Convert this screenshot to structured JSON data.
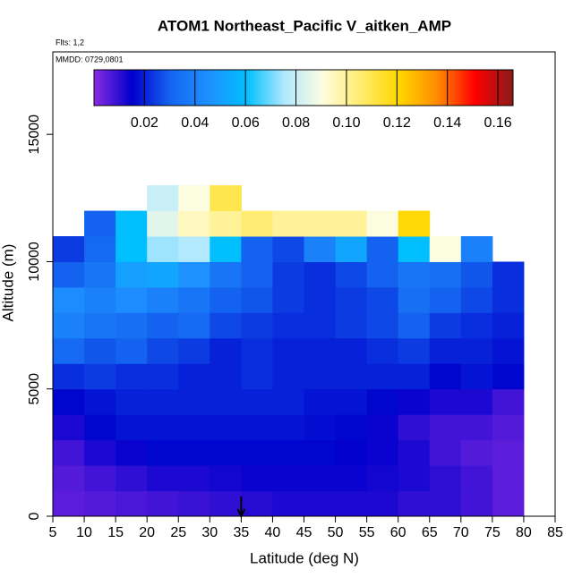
{
  "chart_data": {
    "type": "heatmap",
    "title": "ATOM1 Northeast_Pacific V_aitken_AMP",
    "flights_label": "Flts: 1,2",
    "date_label": "MMDD: 0729,0801",
    "xlabel": "Latitude (deg N)",
    "ylabel": "Altitude (m)",
    "xlim": [
      5,
      85
    ],
    "ylim": [
      0,
      18240
    ],
    "xticks": [
      5,
      10,
      15,
      20,
      25,
      30,
      35,
      40,
      45,
      50,
      55,
      60,
      65,
      70,
      75,
      80,
      85
    ],
    "yticks": [
      0,
      5000,
      10000,
      15000
    ],
    "x": [
      7.5,
      12.5,
      17.5,
      22.5,
      27.5,
      32.5,
      37.5,
      42.5,
      47.5,
      52.5,
      57.5,
      62.5,
      67.5,
      72.5,
      77.5
    ],
    "y": [
      500,
      1500,
      2500,
      3500,
      4500,
      5500,
      6500,
      7500,
      8500,
      9500,
      10500,
      11500,
      12500
    ],
    "z": [
      [
        0.005,
        0.006,
        0.007,
        0.008,
        0.009,
        0.01,
        0.011,
        0.012,
        0.012,
        0.012,
        0.012,
        0.01,
        0.01,
        0.008,
        0.005
      ],
      [
        0.006,
        0.008,
        0.01,
        0.012,
        0.012,
        0.013,
        0.014,
        0.014,
        0.014,
        0.014,
        0.013,
        0.012,
        0.01,
        0.008,
        0.005
      ],
      [
        0.008,
        0.012,
        0.014,
        0.016,
        0.016,
        0.016,
        0.016,
        0.016,
        0.016,
        0.015,
        0.014,
        0.012,
        0.008,
        0.006,
        0.005
      ],
      [
        0.012,
        0.016,
        0.018,
        0.018,
        0.018,
        0.018,
        0.018,
        0.018,
        0.017,
        0.016,
        0.014,
        0.01,
        0.008,
        0.008,
        0.006
      ],
      [
        0.016,
        0.018,
        0.02,
        0.02,
        0.02,
        0.02,
        0.02,
        0.02,
        0.018,
        0.018,
        0.016,
        0.014,
        0.012,
        0.012,
        0.008
      ],
      [
        0.022,
        0.024,
        0.022,
        0.022,
        0.02,
        0.02,
        0.022,
        0.02,
        0.02,
        0.02,
        0.02,
        0.02,
        0.016,
        0.018,
        0.016
      ],
      [
        0.032,
        0.028,
        0.03,
        0.026,
        0.024,
        0.02,
        0.022,
        0.02,
        0.02,
        0.02,
        0.022,
        0.024,
        0.02,
        0.02,
        0.018
      ],
      [
        0.04,
        0.036,
        0.034,
        0.03,
        0.032,
        0.026,
        0.024,
        0.022,
        0.022,
        0.024,
        0.026,
        0.03,
        0.024,
        0.022,
        0.02
      ],
      [
        0.044,
        0.04,
        0.044,
        0.04,
        0.036,
        0.03,
        0.028,
        0.024,
        0.022,
        0.024,
        0.026,
        0.034,
        0.03,
        0.026,
        0.022
      ],
      [
        0.03,
        0.036,
        0.05,
        0.052,
        0.046,
        0.036,
        0.03,
        0.024,
        0.022,
        0.026,
        0.03,
        0.036,
        0.034,
        0.028,
        0.022
      ],
      [
        0.024,
        0.032,
        0.06,
        0.074,
        0.076,
        0.06,
        0.03,
        0.026,
        0.04,
        0.052,
        0.03,
        0.06,
        0.09,
        0.04,
        null
      ],
      [
        null,
        0.03,
        0.06,
        0.085,
        0.095,
        0.1,
        0.105,
        0.1,
        0.1,
        0.1,
        0.09,
        0.12,
        null,
        null,
        null
      ],
      [
        null,
        null,
        null,
        0.08,
        0.09,
        0.11,
        null,
        null,
        null,
        null,
        null,
        null,
        null,
        null,
        null
      ]
    ],
    "clim": [
      0,
      0.166
    ],
    "cticks": [
      0.02,
      0.04,
      0.06,
      0.08,
      {
        "value": 0.1,
        "label": "0.10"
      },
      0.12,
      0.14,
      0.16
    ],
    "colorscale": [
      "#8a2be2",
      "#0000cd",
      "#1464f0",
      "#1e90ff",
      "#00bfff",
      "#b0e8ff",
      "#fffde0",
      "#ffec6e",
      "#ffd700",
      "#ff8c00",
      "#ff0000",
      "#8b1a1a"
    ],
    "marker_x": 35
  }
}
